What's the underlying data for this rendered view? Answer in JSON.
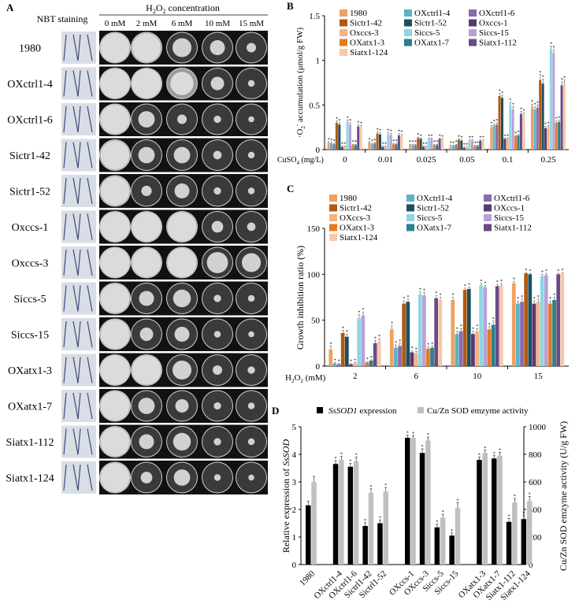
{
  "panel_letters": [
    "A",
    "B",
    "C",
    "D"
  ],
  "panel_a": {
    "nbt_header": "NBT staining",
    "h2o2_header": "H",
    "h2o2_sub1": "2",
    "h2o2_o": "O",
    "h2o2_sub2": "2",
    "h2o2_rest": " concentration",
    "concentrations": [
      "0 mM",
      "2 mM",
      "6 mM",
      "10 mM",
      "15 mM"
    ],
    "strains": [
      "1980",
      "OXctrl1-4",
      "OXctrl1-6",
      "Sictr1-42",
      "Sictr1-52",
      "Oxccs-1",
      "Oxccs-3",
      "Siccs-5",
      "Siccs-15",
      "OXatx1-3",
      "OXatx1-7",
      "Siatx1-112",
      "Siatx1-124"
    ],
    "colony_area_fraction": [
      [
        0.95,
        0.92,
        0.4,
        0.25,
        0.1
      ],
      [
        0.97,
        0.97,
        0.6,
        0.2,
        0.05
      ],
      [
        0.95,
        0.3,
        0.1,
        0.06,
        0.04
      ],
      [
        0.93,
        0.3,
        0.3,
        0.08,
        0.05
      ],
      [
        0.93,
        0.12,
        0.25,
        0.06,
        0.05
      ],
      [
        0.97,
        0.97,
        0.95,
        0.15,
        0.08
      ],
      [
        0.97,
        0.95,
        0.95,
        0.5,
        0.4
      ],
      [
        0.95,
        0.25,
        0.35,
        0.06,
        0.05
      ],
      [
        0.95,
        0.2,
        0.25,
        0.05,
        0.04
      ],
      [
        0.97,
        0.95,
        0.4,
        0.1,
        0.06
      ],
      [
        0.95,
        0.3,
        0.2,
        0.06,
        0.05
      ],
      [
        0.95,
        0.25,
        0.35,
        0.06,
        0.05
      ],
      [
        0.95,
        0.15,
        0.3,
        0.05,
        0.04
      ]
    ],
    "colors": {
      "dark_plate": "#3a3a3a",
      "gray_plate": "#9a9a9a",
      "mycelium": "#e2e2e2",
      "nbt_bg": "#d9dde5"
    }
  },
  "chart_data": [
    {
      "panel": "B",
      "type": "bar",
      "ylabel_dot": "·",
      "ylabel_o": "O",
      "ylabel_sub": "2",
      "ylabel_sup": "-",
      "ylabel_rest": " accumulation (μmol/g FW)",
      "xlabel_main": "CuSO",
      "xlabel_sub": "4",
      "xlabel_unit": " (mg/L)",
      "ylim": [
        0,
        1.5
      ],
      "yticks": [
        0,
        0.5,
        1,
        1.5
      ],
      "ytick_labels": [
        "0",
        "0.5",
        "1",
        "1.5"
      ],
      "categories": [
        "0",
        "0.01",
        "0.025",
        "0.05",
        "0.1",
        "0.25"
      ],
      "legend": [
        "1980",
        "OXctrl1-4",
        "OXctrl1-6",
        "Sictr1-42",
        "Sictr1-52",
        "Oxccs-1",
        "Oxccs-3",
        "Siccs-5",
        "Siccs-15",
        "OXatx1-3",
        "OXatx1-7",
        "Siatx1-112",
        "Siatx1-124"
      ],
      "series": [
        {
          "name": "1980",
          "color": "#f0a060",
          "values": [
            0.08,
            0.08,
            0.05,
            0.04,
            0.25,
            0.48
          ],
          "errors": [
            0.01,
            0.01,
            0.01,
            0.01,
            0.02,
            0.03
          ]
        },
        {
          "name": "OXctrl1-4",
          "color": "#5ab4c4",
          "values": [
            0.07,
            0.06,
            0.05,
            0.04,
            0.27,
            0.45
          ],
          "errors": [
            0.01,
            0.01,
            0.01,
            0.01,
            0.02,
            0.03
          ]
        },
        {
          "name": "OXctrl1-6",
          "color": "#8a6ab0",
          "values": [
            0.06,
            0.07,
            0.05,
            0.05,
            0.28,
            0.47
          ],
          "errors": [
            0.01,
            0.01,
            0.01,
            0.01,
            0.02,
            0.03
          ]
        },
        {
          "name": "Sictr1-42",
          "color": "#b05a10",
          "values": [
            0.3,
            0.18,
            0.13,
            0.11,
            0.6,
            0.78
          ],
          "errors": [
            0.02,
            0.02,
            0.01,
            0.01,
            0.03,
            0.06
          ]
        },
        {
          "name": "Sictr1-52",
          "color": "#1e4e60",
          "values": [
            0.28,
            0.17,
            0.12,
            0.1,
            0.58,
            0.74
          ],
          "errors": [
            0.02,
            0.02,
            0.01,
            0.01,
            0.03,
            0.05
          ]
        },
        {
          "name": "Oxccs-1",
          "color": "#5a3a72",
          "values": [
            0.03,
            0.03,
            0.03,
            0.02,
            0.12,
            0.24
          ],
          "errors": [
            0.01,
            0.01,
            0.01,
            0.01,
            0.01,
            0.02
          ]
        },
        {
          "name": "Oxccs-3",
          "color": "#f4b482",
          "values": [
            0.03,
            0.03,
            0.03,
            0.02,
            0.12,
            0.25
          ],
          "errors": [
            0.01,
            0.01,
            0.01,
            0.01,
            0.01,
            0.02
          ]
        },
        {
          "name": "Siccs-5",
          "color": "#8ed6e4",
          "values": [
            0.31,
            0.17,
            0.12,
            0.1,
            0.5,
            1.12
          ],
          "errors": [
            0.02,
            0.02,
            0.01,
            0.01,
            0.03,
            0.04
          ]
        },
        {
          "name": "Siccs-15",
          "color": "#b8a0d8",
          "values": [
            0.28,
            0.16,
            0.12,
            0.1,
            0.45,
            1.08
          ],
          "errors": [
            0.02,
            0.02,
            0.01,
            0.01,
            0.03,
            0.04
          ]
        },
        {
          "name": "OXatx1-3",
          "color": "#e87a20",
          "values": [
            0.05,
            0.06,
            0.05,
            0.04,
            0.15,
            0.3
          ],
          "errors": [
            0.01,
            0.01,
            0.01,
            0.01,
            0.01,
            0.02
          ]
        },
        {
          "name": "OXatx1-7",
          "color": "#2a7f90",
          "values": [
            0.05,
            0.06,
            0.05,
            0.04,
            0.16,
            0.31
          ],
          "errors": [
            0.01,
            0.01,
            0.01,
            0.01,
            0.01,
            0.02
          ]
        },
        {
          "name": "Siatx1-112",
          "color": "#6a4a86",
          "values": [
            0.26,
            0.16,
            0.12,
            0.1,
            0.4,
            0.72
          ],
          "errors": [
            0.02,
            0.02,
            0.01,
            0.01,
            0.03,
            0.04
          ]
        },
        {
          "name": "Siatx1-124",
          "color": "#f8c8a8",
          "values": [
            0.25,
            0.15,
            0.11,
            0.1,
            0.38,
            0.74
          ],
          "errors": [
            0.02,
            0.02,
            0.01,
            0.01,
            0.03,
            0.04
          ]
        }
      ]
    },
    {
      "panel": "C",
      "type": "bar",
      "ylabel": "Growth inhibition ratio (%)",
      "xlabel_main": "H",
      "xlabel_sub1": "2",
      "xlabel_o": "O",
      "xlabel_sub2": "2",
      "xlabel_unit": " (mM)",
      "ylim": [
        0,
        150
      ],
      "yticks": [
        0,
        50,
        100,
        150
      ],
      "ytick_labels": [
        "0",
        "50",
        "100",
        "150"
      ],
      "categories": [
        "2",
        "6",
        "10",
        "15"
      ],
      "legend": [
        "1980",
        "OXctrl1-4",
        "OXctrl1-6",
        "Sictr1-42",
        "Sictr1-52",
        "OXccs-1",
        "OXccs-3",
        "Siccs-5",
        "Siccs-15",
        "OXatx1-3",
        "OXatx1-7",
        "Siatx1-112",
        "Siatx1-124"
      ],
      "series": [
        {
          "name": "1980",
          "color": "#f0a060",
          "values": [
            18,
            40,
            72,
            90
          ],
          "errors": [
            4,
            4,
            3,
            2
          ]
        },
        {
          "name": "OXctrl1-4",
          "color": "#5ab4c4",
          "values": [
            3,
            20,
            35,
            68
          ],
          "errors": [
            1,
            3,
            3,
            3
          ]
        },
        {
          "name": "OXctrl1-6",
          "color": "#8a6ab0",
          "values": [
            2,
            22,
            38,
            70
          ],
          "errors": [
            1,
            3,
            3,
            3
          ]
        },
        {
          "name": "Sictr1-42",
          "color": "#b05a10",
          "values": [
            36,
            68,
            83,
            101
          ],
          "errors": [
            3,
            3,
            2,
            1
          ]
        },
        {
          "name": "Sictr1-52",
          "color": "#1e4e60",
          "values": [
            32,
            70,
            84,
            100
          ],
          "errors": [
            3,
            3,
            2,
            1
          ]
        },
        {
          "name": "OXccs-1",
          "color": "#5a3a72",
          "values": [
            2,
            15,
            35,
            68
          ],
          "errors": [
            1,
            2,
            3,
            3
          ]
        },
        {
          "name": "OXccs-3",
          "color": "#f4b482",
          "values": [
            3,
            14,
            38,
            70
          ],
          "errors": [
            1,
            2,
            3,
            3
          ]
        },
        {
          "name": "Siccs-5",
          "color": "#8ed6e4",
          "values": [
            52,
            78,
            88,
            98
          ],
          "errors": [
            4,
            3,
            2,
            2
          ]
        },
        {
          "name": "Siccs-15",
          "color": "#b8a0d8",
          "values": [
            55,
            77,
            86,
            99
          ],
          "errors": [
            4,
            3,
            2,
            2
          ]
        },
        {
          "name": "OXatx1-3",
          "color": "#e87a20",
          "values": [
            4,
            19,
            40,
            68
          ],
          "errors": [
            1,
            2,
            3,
            3
          ]
        },
        {
          "name": "OXatx1-7",
          "color": "#2a7f90",
          "values": [
            6,
            20,
            45,
            72
          ],
          "errors": [
            1,
            2,
            4,
            3
          ]
        },
        {
          "name": "Siatx1-112",
          "color": "#6a4a86",
          "values": [
            25,
            74,
            87,
            100
          ],
          "errors": [
            3,
            3,
            2,
            1
          ]
        },
        {
          "name": "Siatx1-124",
          "color": "#f8c8a8",
          "values": [
            27,
            72,
            88,
            101
          ],
          "errors": [
            3,
            3,
            2,
            1
          ]
        }
      ]
    },
    {
      "panel": "D",
      "type": "bar",
      "ylabel_left": "Relative expression of ",
      "ylabel_left_italic": "SsSOD",
      "ylabel_right": "Cu/Zn SOD emzyme activity (U/g FW)",
      "legend_expr_italic": "SsSOD1",
      "legend_expr_rest": " expression",
      "legend_activity": "Cu/Zn SOD emzyme activity",
      "ylim_left": [
        0,
        5
      ],
      "yticks_left": [
        0,
        1,
        2,
        3,
        4,
        5
      ],
      "ylim_right": [
        0,
        1000
      ],
      "yticks_right": [
        0,
        200,
        400,
        600,
        800,
        1000
      ],
      "categories": [
        "1980",
        "OXctrl1-4",
        "OXctrl1-6",
        "Sictrl1-42",
        "Sictrl1-52",
        "OXccs-1",
        "OXccs-3",
        "Siccs-5",
        "Siccs-15",
        "OXatx1-3",
        "OXatx1-7",
        "Siatx1-112",
        "Siatx1-124"
      ],
      "groups": [
        [
          0
        ],
        [
          1,
          2,
          3,
          4
        ],
        [
          5,
          6,
          7,
          8
        ],
        [
          9,
          10,
          11,
          12
        ]
      ],
      "series": [
        {
          "name": "SsSOD1 expression",
          "axis": "left",
          "color": "#000000",
          "values": [
            2.15,
            3.65,
            3.55,
            1.4,
            1.5,
            4.6,
            4.05,
            1.35,
            1.05,
            3.8,
            3.85,
            1.55,
            1.65
          ],
          "errors": [
            0.15,
            0.12,
            0.12,
            0.12,
            0.12,
            0.1,
            0.15,
            0.12,
            0.1,
            0.1,
            0.1,
            0.12,
            0.12
          ]
        },
        {
          "name": "Cu/Zn SOD emzyme activity",
          "axis": "right",
          "color": "#c0c0c0",
          "values": [
            600,
            760,
            750,
            520,
            530,
            920,
            900,
            340,
            410,
            810,
            790,
            450,
            460
          ],
          "errors": [
            40,
            25,
            30,
            30,
            30,
            15,
            25,
            25,
            40,
            20,
            25,
            30,
            35
          ]
        }
      ]
    }
  ]
}
